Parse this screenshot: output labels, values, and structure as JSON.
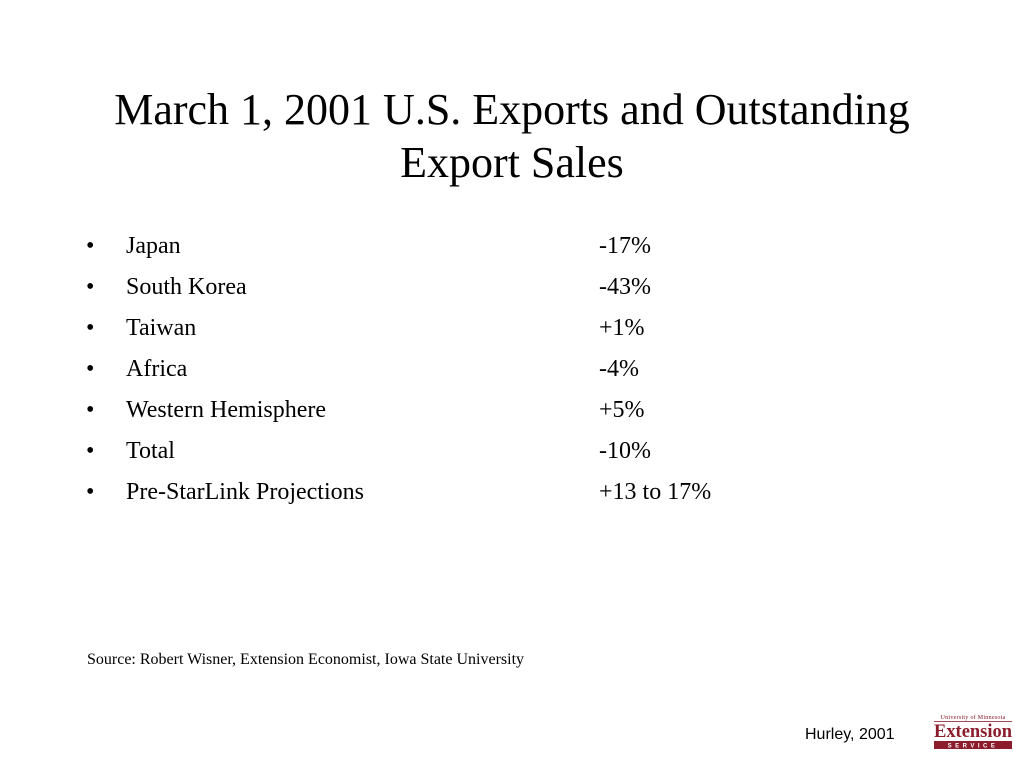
{
  "title": "March 1, 2001 U.S. Exports and Outstanding Export Sales",
  "bullets": [
    {
      "label": "Japan",
      "value": "-17%"
    },
    {
      "label": "South Korea",
      "value": "-43%"
    },
    {
      "label": "Taiwan",
      "value": "+1%"
    },
    {
      "label": "Africa",
      "value": "-4%"
    },
    {
      "label": "Western Hemisphere",
      "value": "+5%"
    },
    {
      "label": "Total",
      "value": "-10%"
    },
    {
      "label": "Pre-StarLink Projections",
      "value": "+13 to 17%"
    }
  ],
  "bullet_symbol": "•",
  "source": "Source: Robert Wisner, Extension Economist, Iowa State University",
  "credit": "Hurley, 2001",
  "logo": {
    "top_text": "University of Minnesota",
    "main_text": "Extension",
    "bottom_text": "SERVICE",
    "color": "#8c1d2c"
  }
}
